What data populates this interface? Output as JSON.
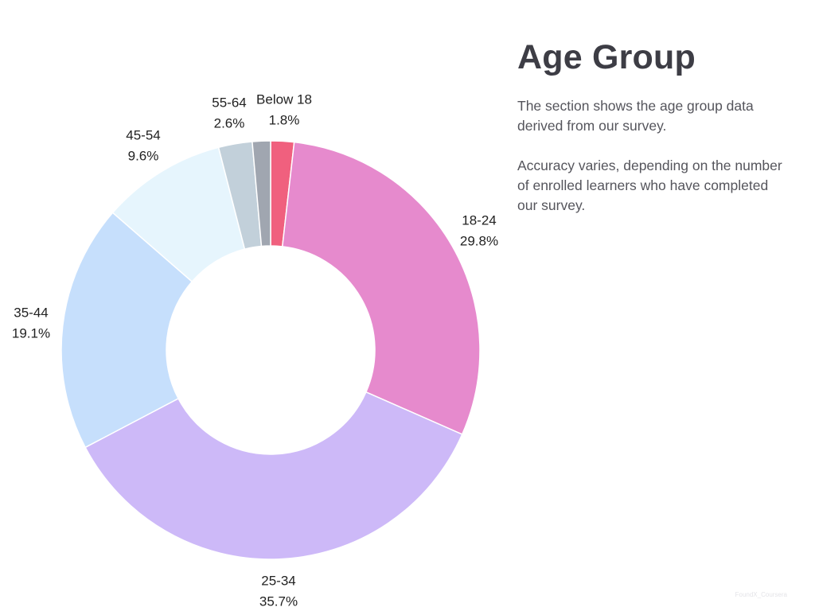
{
  "side_panel": {
    "title": "Age Group",
    "description_1": "The section shows the age group data derived from our survey.",
    "description_2": "Accuracy varies, depending on the number of enrolled learners who have completed our survey."
  },
  "watermark": "FoundX_Coursera",
  "chart_data": {
    "type": "pie",
    "donut": true,
    "title": "",
    "slices": [
      {
        "label": "Below 18",
        "value": 1.8,
        "display": "1.8%",
        "color": "#f0607e"
      },
      {
        "label": "18-24",
        "value": 29.8,
        "display": "29.8%",
        "color": "#e68acd"
      },
      {
        "label": "25-34",
        "value": 35.7,
        "display": "35.7%",
        "color": "#cdb9f8"
      },
      {
        "label": "35-44",
        "value": 19.1,
        "display": "19.1%",
        "color": "#c6dffc"
      },
      {
        "label": "45-54",
        "value": 9.6,
        "display": "9.6%",
        "color": "#e6f5fd"
      },
      {
        "label": "55-64",
        "value": 2.6,
        "display": "2.6%",
        "color": "#c2d0da"
      },
      {
        "label": "",
        "value": 1.4,
        "display": "",
        "color": "#a0a6b0"
      }
    ],
    "start": "top",
    "direction": "clockwise"
  }
}
